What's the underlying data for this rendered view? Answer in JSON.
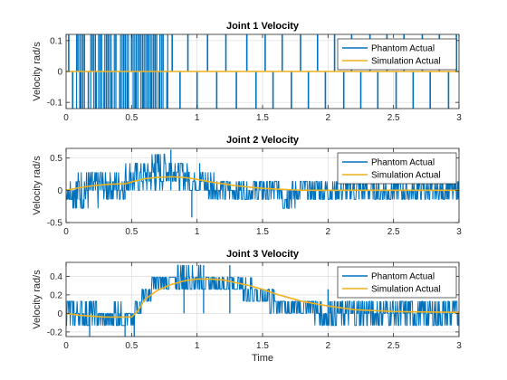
{
  "colors": {
    "phantom": "#0072BD",
    "simulation": "#EDB120",
    "grid": "#dcdcdc",
    "axis": "#262626"
  },
  "chart_data": [
    {
      "type": "line",
      "title": "Joint 1 Velocity",
      "ylabel": "Velocity rad/s",
      "xlabel": "",
      "xlim": [
        0,
        3
      ],
      "ylim": [
        -0.12,
        0.12
      ],
      "xticks": [
        0,
        0.5,
        1,
        1.5,
        2,
        2.5,
        3
      ],
      "yticks": [
        -0.1,
        0,
        0.1
      ],
      "xtick_labels": [
        "0",
        "0.5",
        "1",
        "1.5",
        "2",
        "2.5",
        "3"
      ],
      "ytick_labels": [
        "-0.1",
        "0",
        "0.1"
      ],
      "grid": true,
      "legend_position": "top-right",
      "series": [
        {
          "name": "Phantom Actual",
          "kind": "spikes",
          "baseline": 0,
          "levels": [
            -0.12,
            0.12
          ],
          "spikes": [
            [
              0.02,
              0.12
            ],
            [
              0.05,
              -0.12
            ],
            [
              0.09,
              0.12
            ],
            [
              0.11,
              -0.12
            ],
            [
              0.14,
              0.12
            ],
            [
              0.17,
              -0.12
            ],
            [
              0.2,
              0.12
            ],
            [
              0.23,
              -0.12
            ],
            [
              0.26,
              0.12
            ],
            [
              0.29,
              -0.12
            ],
            [
              0.32,
              0.12
            ],
            [
              0.35,
              -0.12
            ],
            [
              0.38,
              0.12
            ],
            [
              0.41,
              -0.12
            ],
            [
              0.44,
              0.12
            ],
            [
              0.47,
              -0.12
            ],
            [
              0.5,
              0.12
            ],
            [
              0.53,
              -0.12
            ],
            [
              0.56,
              0.12
            ],
            [
              0.59,
              -0.12
            ],
            [
              0.62,
              0.12
            ],
            [
              0.65,
              -0.12
            ],
            [
              0.68,
              0.12
            ],
            [
              0.71,
              -0.12
            ],
            [
              0.74,
              0.12
            ],
            [
              0.77,
              -0.12
            ],
            [
              0.81,
              0.12
            ],
            [
              0.87,
              -0.12
            ],
            [
              0.93,
              0.12
            ],
            [
              1.0,
              -0.12
            ],
            [
              1.08,
              0.12
            ],
            [
              1.15,
              -0.12
            ],
            [
              1.22,
              0.12
            ],
            [
              1.3,
              -0.12
            ],
            [
              1.38,
              0.12
            ],
            [
              1.45,
              -0.12
            ],
            [
              1.52,
              0.12
            ],
            [
              1.58,
              -0.12
            ],
            [
              1.65,
              0.12
            ],
            [
              1.72,
              -0.12
            ],
            [
              1.79,
              0.12
            ],
            [
              1.85,
              -0.12
            ],
            [
              1.92,
              0.12
            ],
            [
              1.98,
              -0.12
            ],
            [
              2.05,
              0.12
            ],
            [
              2.12,
              -0.12
            ],
            [
              2.18,
              0.12
            ],
            [
              2.25,
              -0.12
            ],
            [
              2.32,
              0.12
            ],
            [
              2.38,
              -0.12
            ],
            [
              2.45,
              0.12
            ],
            [
              2.52,
              -0.12
            ],
            [
              2.58,
              0.12
            ],
            [
              2.65,
              -0.12
            ],
            [
              2.72,
              0.12
            ],
            [
              2.78,
              -0.12
            ],
            [
              2.85,
              0.12
            ],
            [
              2.92,
              -0.12
            ],
            [
              2.98,
              0.12
            ]
          ]
        },
        {
          "name": "Simulation Actual",
          "kind": "line",
          "x": [
            0,
            0.5,
            1,
            1.5,
            2,
            2.5,
            3
          ],
          "y": [
            0,
            0,
            0,
            0,
            0,
            0,
            0
          ]
        }
      ]
    },
    {
      "type": "line",
      "title": "Joint 2 Velocity",
      "ylabel": "Velocity rad/s",
      "xlabel": "",
      "xlim": [
        0,
        3
      ],
      "ylim": [
        -0.5,
        0.65
      ],
      "xticks": [
        0,
        0.5,
        1,
        1.5,
        2,
        2.5,
        3
      ],
      "yticks": [
        -0.5,
        0,
        0.5
      ],
      "xtick_labels": [
        "0",
        "0.5",
        "1",
        "1.5",
        "2",
        "2.5",
        "3"
      ],
      "ytick_labels": [
        "-0.5",
        "0",
        "0.5"
      ],
      "grid": true,
      "legend_position": "top-right",
      "series": [
        {
          "name": "Phantom Actual",
          "kind": "noise",
          "step": 0.1,
          "quantum": 0.14,
          "x": [
            0,
            0.1,
            0.2,
            0.3,
            0.4,
            0.5,
            0.6,
            0.7,
            0.8,
            0.9,
            1.0,
            1.1,
            1.2,
            1.3,
            1.4,
            1.5,
            1.6,
            1.7,
            1.8,
            1.9,
            2.0,
            2.2,
            2.4,
            2.6,
            2.8,
            3.0
          ],
          "low": [
            -0.14,
            -0.28,
            -0.28,
            -0.14,
            -0.14,
            0.0,
            0.0,
            0.0,
            0.14,
            0.0,
            0.0,
            -0.14,
            -0.14,
            -0.14,
            -0.14,
            -0.14,
            -0.14,
            -0.28,
            -0.14,
            -0.14,
            -0.14,
            -0.14,
            -0.14,
            -0.14,
            -0.14,
            -0.14
          ],
          "high": [
            0.14,
            0.28,
            0.28,
            0.28,
            0.28,
            0.42,
            0.42,
            0.56,
            0.56,
            0.42,
            0.28,
            0.28,
            0.14,
            0.14,
            0.14,
            0.14,
            0.14,
            0.14,
            0.14,
            0.14,
            0.14,
            0.14,
            0.14,
            0.14,
            0.14,
            0.14
          ],
          "outliers": [
            [
              0.08,
              -0.28
            ],
            [
              0.17,
              0.28
            ],
            [
              0.45,
              -0.14
            ],
            [
              0.68,
              0.56
            ],
            [
              0.8,
              0.63
            ],
            [
              0.96,
              -0.42
            ],
            [
              1.02,
              0.42
            ],
            [
              1.7,
              -0.28
            ],
            [
              2.2,
              0.28
            ],
            [
              2.8,
              -0.14
            ]
          ]
        },
        {
          "name": "Simulation Actual",
          "kind": "line",
          "x": [
            0,
            0.1,
            0.2,
            0.3,
            0.4,
            0.45,
            0.5,
            0.6,
            0.7,
            0.8,
            0.9,
            1.0,
            1.1,
            1.2,
            1.3,
            1.4,
            1.5,
            1.6,
            1.7,
            1.8,
            2.0,
            2.2,
            2.5,
            3.0
          ],
          "y": [
            0,
            0.04,
            0.07,
            0.09,
            0.1,
            0.1,
            0.13,
            0.18,
            0.2,
            0.21,
            0.2,
            0.17,
            0.13,
            0.1,
            0.07,
            0.05,
            0.03,
            0.02,
            0.01,
            0.0,
            0.0,
            0.0,
            0.0,
            0.0
          ]
        }
      ]
    },
    {
      "type": "line",
      "title": "Joint 3 Velocity",
      "ylabel": "Velocity rad/s",
      "xlabel": "Time",
      "xlim": [
        0,
        3
      ],
      "ylim": [
        -0.25,
        0.55
      ],
      "xticks": [
        0,
        0.5,
        1,
        1.5,
        2,
        2.5,
        3
      ],
      "yticks": [
        -0.2,
        0,
        0.2,
        0.4
      ],
      "xtick_labels": [
        "0",
        "0.5",
        "1",
        "1.5",
        "2",
        "2.5",
        "3"
      ],
      "ytick_labels": [
        "-0.2",
        "0",
        "0.2",
        "0.4"
      ],
      "grid": true,
      "legend_position": "top-right",
      "series": [
        {
          "name": "Phantom Actual",
          "kind": "noise",
          "step": 0.1,
          "quantum": 0.13,
          "x": [
            0,
            0.1,
            0.2,
            0.3,
            0.4,
            0.5,
            0.55,
            0.6,
            0.7,
            0.8,
            0.9,
            1.0,
            1.1,
            1.2,
            1.3,
            1.4,
            1.5,
            1.6,
            1.7,
            1.8,
            2.0,
            2.2,
            2.4,
            2.6,
            2.8,
            3.0
          ],
          "low": [
            -0.13,
            -0.13,
            -0.13,
            -0.13,
            -0.13,
            -0.13,
            0.0,
            0.13,
            0.26,
            0.26,
            0.26,
            0.26,
            0.26,
            0.26,
            0.26,
            0.13,
            0.13,
            0.0,
            0.0,
            0.0,
            -0.13,
            -0.13,
            -0.13,
            -0.13,
            -0.13,
            -0.13
          ],
          "high": [
            0.13,
            0.13,
            0.13,
            0.0,
            0.13,
            0.0,
            0.13,
            0.26,
            0.39,
            0.39,
            0.52,
            0.52,
            0.39,
            0.39,
            0.39,
            0.39,
            0.26,
            0.26,
            0.13,
            0.13,
            0.13,
            0.13,
            0.13,
            0.13,
            0.13,
            0.13
          ],
          "outliers": [
            [
              0.18,
              -0.26
            ],
            [
              0.45,
              -0.26
            ],
            [
              0.52,
              -0.26
            ],
            [
              0.9,
              0.52
            ],
            [
              1.05,
              0.52
            ],
            [
              1.25,
              0.52
            ],
            [
              1.45,
              0.0
            ],
            [
              2.0,
              0.26
            ],
            [
              2.3,
              0.0
            ]
          ]
        },
        {
          "name": "Simulation Actual",
          "kind": "line",
          "x": [
            0,
            0.1,
            0.2,
            0.3,
            0.4,
            0.5,
            0.55,
            0.6,
            0.7,
            0.8,
            0.9,
            1.0,
            1.1,
            1.2,
            1.3,
            1.4,
            1.5,
            1.6,
            1.7,
            1.8,
            2.0,
            2.2,
            2.5,
            3.0
          ],
          "y": [
            0,
            -0.02,
            -0.03,
            -0.04,
            -0.04,
            -0.04,
            0.03,
            0.15,
            0.25,
            0.31,
            0.35,
            0.37,
            0.37,
            0.36,
            0.33,
            0.3,
            0.26,
            0.21,
            0.17,
            0.13,
            0.08,
            0.04,
            0.02,
            0.01
          ]
        }
      ]
    }
  ]
}
